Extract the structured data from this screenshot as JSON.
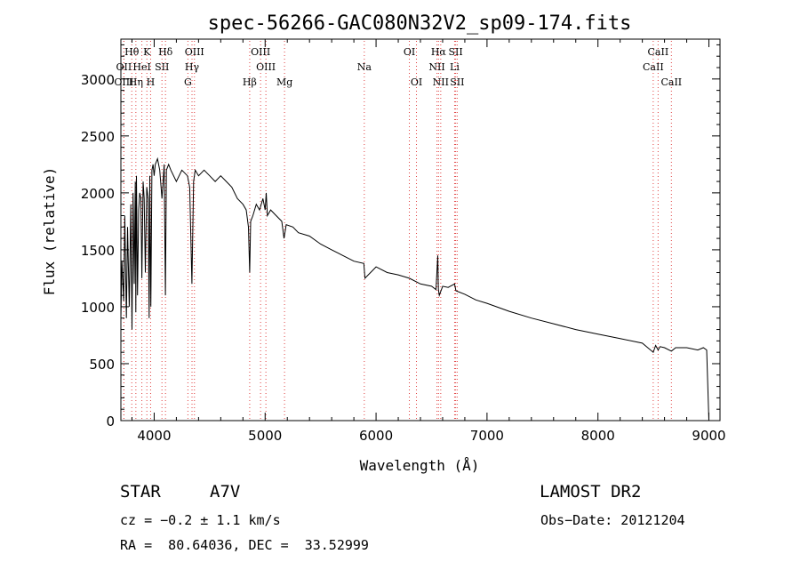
{
  "chart_data": {
    "type": "line",
    "title": "spec-56266-GAC080N32V2_sp09-174.fits",
    "xlabel": "Wavelength (Å)",
    "ylabel": "Flux (relative)",
    "xlim": [
      3700,
      9100
    ],
    "ylim": [
      0,
      3350
    ],
    "xticks": [
      4000,
      5000,
      6000,
      7000,
      8000,
      9000
    ],
    "yticks": [
      0,
      500,
      1000,
      1500,
      2000,
      2500,
      3000
    ],
    "series": [
      {
        "name": "spectrum",
        "x": [
          3700,
          3710,
          3725,
          3735,
          3750,
          3760,
          3775,
          3790,
          3800,
          3810,
          3820,
          3830,
          3835,
          3840,
          3850,
          3860,
          3870,
          3880,
          3889,
          3900,
          3910,
          3920,
          3933,
          3945,
          3955,
          3960,
          3970,
          3980,
          3990,
          4000,
          4010,
          4030,
          4050,
          4070,
          4090,
          4101,
          4110,
          4130,
          4150,
          4200,
          4250,
          4300,
          4320,
          4340,
          4355,
          4370,
          4400,
          4450,
          4500,
          4550,
          4600,
          4650,
          4700,
          4750,
          4800,
          4830,
          4850,
          4861,
          4870,
          4890,
          4920,
          4950,
          4980,
          5000,
          5010,
          5020,
          5050,
          5100,
          5150,
          5170,
          5190,
          5250,
          5300,
          5400,
          5500,
          5600,
          5700,
          5800,
          5890,
          5900,
          6000,
          6100,
          6200,
          6300,
          6400,
          6500,
          6540,
          6556,
          6562,
          6570,
          6600,
          6650,
          6708,
          6720,
          6800,
          6900,
          7000,
          7200,
          7400,
          7600,
          7800,
          8000,
          8200,
          8400,
          8498,
          8520,
          8542,
          8560,
          8600,
          8662,
          8700,
          8800,
          8900,
          8950,
          8980,
          9000
        ],
        "y": [
          900,
          1400,
          1050,
          1800,
          900,
          1700,
          1000,
          1900,
          800,
          2000,
          1200,
          2100,
          950,
          2150,
          1100,
          1850,
          2000,
          1950,
          1250,
          2100,
          1950,
          1300,
          2050,
          1950,
          900,
          2150,
          1000,
          2200,
          2250,
          2150,
          2250,
          2300,
          2200,
          1950,
          2250,
          1100,
          2200,
          2250,
          2200,
          2100,
          2200,
          2150,
          2050,
          1200,
          2100,
          2200,
          2150,
          2200,
          2150,
          2100,
          2150,
          2100,
          2050,
          1950,
          1900,
          1850,
          1700,
          1300,
          1750,
          1800,
          1900,
          1850,
          1950,
          1850,
          2000,
          1800,
          1850,
          1800,
          1750,
          1600,
          1720,
          1700,
          1650,
          1620,
          1550,
          1500,
          1450,
          1400,
          1380,
          1250,
          1350,
          1300,
          1280,
          1250,
          1200,
          1180,
          1150,
          1450,
          1150,
          1100,
          1180,
          1170,
          1200,
          1140,
          1110,
          1060,
          1030,
          960,
          900,
          850,
          800,
          760,
          720,
          680,
          600,
          660,
          620,
          650,
          640,
          610,
          640,
          640,
          620,
          640,
          620,
          0
        ]
      }
    ],
    "spectral_lines": [
      {
        "name": "Hθ",
        "wl": 3798,
        "row": 0
      },
      {
        "name": "K",
        "wl": 3934,
        "row": 0
      },
      {
        "name": "Hδ",
        "wl": 4102,
        "row": 0
      },
      {
        "name": "OIII",
        "wl": 4363,
        "row": 0
      },
      {
        "name": "OIII",
        "wl": 4959,
        "row": 0
      },
      {
        "name": "OI",
        "wl": 6300,
        "row": 0
      },
      {
        "name": "Hα",
        "wl": 6563,
        "row": 0
      },
      {
        "name": "SII",
        "wl": 6717,
        "row": 0
      },
      {
        "name": "CaII",
        "wl": 8542,
        "row": 0
      },
      {
        "name": "OII",
        "wl": 3727,
        "row": 1
      },
      {
        "name": "HeI",
        "wl": 3889,
        "row": 1
      },
      {
        "name": "SII",
        "wl": 4070,
        "row": 1
      },
      {
        "name": "Hγ",
        "wl": 4341,
        "row": 1
      },
      {
        "name": "OIII",
        "wl": 5007,
        "row": 1
      },
      {
        "name": "Na",
        "wl": 5894,
        "row": 1
      },
      {
        "name": "NII",
        "wl": 6549,
        "row": 1
      },
      {
        "name": "Li",
        "wl": 6708,
        "row": 1
      },
      {
        "name": "CaII",
        "wl": 8498,
        "row": 1
      },
      {
        "name": "OIII",
        "wl": 3727,
        "row": 2
      },
      {
        "name": "Hη",
        "wl": 3835,
        "row": 2
      },
      {
        "name": "H",
        "wl": 3968,
        "row": 2
      },
      {
        "name": "G",
        "wl": 4304,
        "row": 2
      },
      {
        "name": "Hβ",
        "wl": 4861,
        "row": 2
      },
      {
        "name": "Mg",
        "wl": 5175,
        "row": 2
      },
      {
        "name": "OI",
        "wl": 6364,
        "row": 2
      },
      {
        "name": "NII",
        "wl": 6583,
        "row": 2
      },
      {
        "name": "SII",
        "wl": 6731,
        "row": 2
      },
      {
        "name": "CaII",
        "wl": 8662,
        "row": 2
      }
    ]
  },
  "info": {
    "object_class": "STAR",
    "subclass": "A7V",
    "survey": "LAMOST DR2",
    "cz": "cz = −0.2 ± 1.1 km/s",
    "obs_date": "Obs−Date: 20121204",
    "coords": "RA =  80.64036, DEC =  33.52999"
  },
  "colors": {
    "line_marker": "#e04040",
    "spectrum": "#000000",
    "axis": "#000000"
  }
}
